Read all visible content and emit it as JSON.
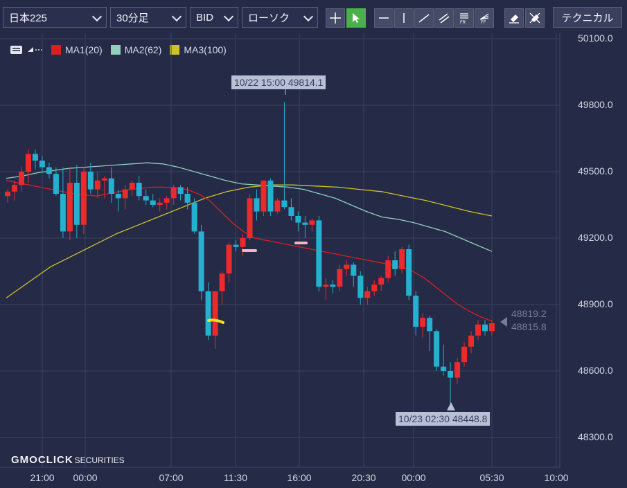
{
  "toolbar": {
    "symbol": "日本225",
    "interval": "30分足",
    "price_type": "BID",
    "chart_style": "ローソク",
    "technical_label": "テクニカル",
    "tools": [
      "crosshair-icon",
      "cursor-icon",
      "hline-icon",
      "vline-icon",
      "trendline-icon",
      "channel-icon",
      "fibonacci-retracement-icon",
      "fibonacci-fan-icon",
      "eraser-icon",
      "delete-all-icon"
    ]
  },
  "legend": [
    {
      "label": "MA1(20)",
      "color": "#d8201f"
    },
    {
      "label": "MA2(62)",
      "color": "#8fd1bb"
    },
    {
      "label": "MA3(100)",
      "color": "#cfc228"
    }
  ],
  "chart_data": {
    "type": "candlestick",
    "y_ticks": [
      "50100.0",
      "49800.0",
      "49500.0",
      "49200.0",
      "48900.0",
      "48600.0",
      "48300.0"
    ],
    "ylim": [
      48100,
      50100
    ],
    "x_ticks": [
      "21:00",
      "00:00",
      "07:00",
      "11:30",
      "16:00",
      "20:30",
      "00:00",
      "05:30",
      "10:00"
    ],
    "high_annotation": "10/22 15:00 49814.1",
    "low_annotation": "10/23 02:30 48448.8",
    "current_prices": [
      "48819.2",
      "48815.8"
    ],
    "up_color": "#ea2a2b",
    "down_color": "#25b0d0",
    "candles": [
      [
        49390,
        49420,
        49360,
        49410
      ],
      [
        49410,
        49460,
        49370,
        49440
      ],
      [
        49440,
        49520,
        49410,
        49500
      ],
      [
        49500,
        49600,
        49450,
        49580
      ],
      [
        49580,
        49600,
        49510,
        49550
      ],
      [
        49550,
        49570,
        49500,
        49520
      ],
      [
        49520,
        49540,
        49470,
        49490
      ],
      [
        49490,
        49520,
        49390,
        49400
      ],
      [
        49400,
        49520,
        49200,
        49230
      ],
      [
        49230,
        49520,
        49190,
        49450
      ],
      [
        49450,
        49530,
        49200,
        49260
      ],
      [
        49260,
        49520,
        49220,
        49500
      ],
      [
        49500,
        49540,
        49400,
        49420
      ],
      [
        49420,
        49500,
        49380,
        49460
      ],
      [
        49460,
        49480,
        49380,
        49470
      ],
      [
        49470,
        49520,
        49360,
        49400
      ],
      [
        49400,
        49420,
        49320,
        49380
      ],
      [
        49380,
        49440,
        49330,
        49420
      ],
      [
        49420,
        49460,
        49390,
        49450
      ],
      [
        49450,
        49480,
        49370,
        49390
      ],
      [
        49390,
        49420,
        49350,
        49370
      ],
      [
        49370,
        49400,
        49340,
        49350
      ],
      [
        49350,
        49380,
        49320,
        49360
      ],
      [
        49360,
        49390,
        49330,
        49380
      ],
      [
        49380,
        49440,
        49350,
        49430
      ],
      [
        49430,
        49440,
        49370,
        49400
      ],
      [
        49400,
        49430,
        49330,
        49360
      ],
      [
        49360,
        49380,
        49220,
        49230
      ],
      [
        49230,
        49260,
        48920,
        48960
      ],
      [
        48960,
        49000,
        48740,
        48760
      ],
      [
        48760,
        48960,
        48700,
        48960
      ],
      [
        48960,
        49050,
        48900,
        49040
      ],
      [
        49040,
        49180,
        49000,
        49170
      ],
      [
        49170,
        49190,
        49140,
        49160
      ],
      [
        49160,
        49220,
        49120,
        49200
      ],
      [
        49200,
        49400,
        49190,
        49380
      ],
      [
        49380,
        49420,
        49280,
        49320
      ],
      [
        49320,
        49460,
        49300,
        49460
      ],
      [
        49460,
        49470,
        49300,
        49320
      ],
      [
        49320,
        49380,
        49310,
        49370
      ],
      [
        49370,
        49814,
        49330,
        49340
      ],
      [
        49340,
        49380,
        49280,
        49300
      ],
      [
        49300,
        49320,
        49230,
        49270
      ],
      [
        49270,
        49300,
        49200,
        49260
      ],
      [
        49260,
        49290,
        49230,
        49280
      ],
      [
        49280,
        49300,
        48960,
        48980
      ],
      [
        48980,
        49020,
        48920,
        48990
      ],
      [
        48990,
        49010,
        48950,
        48980
      ],
      [
        48980,
        49080,
        48960,
        49060
      ],
      [
        49060,
        49100,
        49030,
        49080
      ],
      [
        49080,
        49090,
        48980,
        49030
      ],
      [
        49030,
        49050,
        48900,
        48930
      ],
      [
        48930,
        48980,
        48900,
        48960
      ],
      [
        48960,
        49010,
        48940,
        48990
      ],
      [
        48990,
        49030,
        48960,
        49020
      ],
      [
        49020,
        49120,
        49000,
        49100
      ],
      [
        49100,
        49140,
        49030,
        49060
      ],
      [
        49060,
        49160,
        49040,
        49150
      ],
      [
        49150,
        49170,
        48920,
        48940
      ],
      [
        48940,
        48960,
        48760,
        48800
      ],
      [
        48800,
        48860,
        48750,
        48840
      ],
      [
        48840,
        48850,
        48690,
        48780
      ],
      [
        48780,
        48790,
        48600,
        48620
      ],
      [
        48620,
        48720,
        48580,
        48600
      ],
      [
        48600,
        48640,
        48448,
        48570
      ],
      [
        48570,
        48660,
        48540,
        48640
      ],
      [
        48640,
        48730,
        48620,
        48710
      ],
      [
        48710,
        48780,
        48680,
        48760
      ],
      [
        48760,
        48830,
        48740,
        48810
      ],
      [
        48810,
        48830,
        48760,
        48780
      ],
      [
        48780,
        48830,
        48760,
        48816
      ]
    ],
    "ma1": [
      49460,
      49450,
      49440,
      49430,
      49420,
      49410,
      49400,
      49395,
      49390,
      49400,
      49410,
      49420,
      49425,
      49430,
      49430,
      49425,
      49420,
      49400,
      49370,
      49320,
      49270,
      49230,
      49200,
      49190,
      49180,
      49170,
      49160,
      49150,
      49140,
      49130,
      49120,
      49110,
      49100,
      49090,
      49080,
      49070,
      49050,
      49020,
      48980,
      48940,
      48900,
      48870,
      48845,
      48825
    ],
    "ma2": [
      49470,
      49480,
      49495,
      49505,
      49515,
      49520,
      49525,
      49530,
      49535,
      49540,
      49535,
      49520,
      49500,
      49480,
      49460,
      49445,
      49440,
      49435,
      49430,
      49420,
      49400,
      49380,
      49350,
      49320,
      49295,
      49285,
      49270,
      49250,
      49230,
      49200,
      49170,
      49140
    ],
    "ma3": [
      48930,
      49000,
      49070,
      49120,
      49170,
      49220,
      49260,
      49300,
      49340,
      49380,
      49410,
      49430,
      49440,
      49440,
      49435,
      49430,
      49420,
      49410,
      49390,
      49370,
      49345,
      49320,
      49300
    ]
  },
  "drawings": [
    "pink-mark-1",
    "pink-mark-2",
    "yellow-mark"
  ],
  "brand": {
    "logo": "GMOCLICK",
    "suffix": "SECURITIES"
  }
}
